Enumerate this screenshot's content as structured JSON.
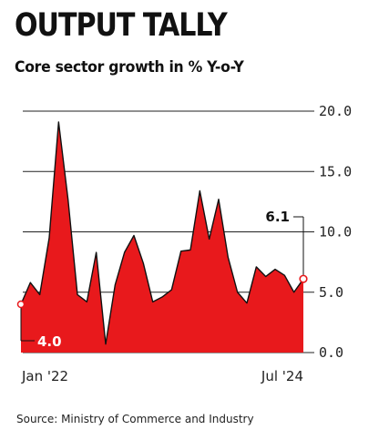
{
  "header": {
    "title": "OUTPUT TALLY",
    "subtitle": "Core sector growth in % Y-o-Y"
  },
  "footer": {
    "source": "Source: Ministry of Commerce and Industry"
  },
  "colors": {
    "fill": "#e8191c",
    "line": "#111111",
    "grid": "#222222",
    "marker_fill": "#ffffff",
    "marker_stroke": "#e8191c"
  },
  "chart_data": {
    "type": "area",
    "title": "OUTPUT TALLY",
    "subtitle": "Core sector growth in % Y-o-Y",
    "x_tick_labels": [
      "Jan '22",
      "Jul '24"
    ],
    "y_ticks": [
      0.0,
      5.0,
      10.0,
      15.0,
      20.0
    ],
    "y_tick_labels": [
      "0.0",
      "5.0",
      "10.0",
      "15.0",
      "20.0"
    ],
    "ylim": [
      0,
      20
    ],
    "grid": "horizontal",
    "legend": "none",
    "series": [
      {
        "x": [
          "2022-01",
          "2022-02",
          "2022-03",
          "2022-04",
          "2022-05",
          "2022-06",
          "2022-07",
          "2022-08",
          "2022-09",
          "2022-10",
          "2022-11",
          "2022-12",
          "2023-01",
          "2023-02",
          "2023-03",
          "2023-04",
          "2023-05",
          "2023-06",
          "2023-07",
          "2023-08",
          "2023-09",
          "2023-10",
          "2023-11",
          "2023-12",
          "2024-01",
          "2024-02",
          "2024-03",
          "2024-04",
          "2024-05",
          "2024-06",
          "2024-07"
        ],
        "values": [
          4.0,
          5.8,
          4.8,
          9.5,
          19.1,
          12.7,
          4.8,
          4.2,
          8.3,
          0.7,
          5.6,
          8.3,
          9.7,
          7.4,
          4.2,
          4.6,
          5.2,
          8.4,
          8.5,
          13.4,
          9.4,
          12.7,
          7.9,
          5.0,
          4.1,
          7.1,
          6.3,
          6.9,
          6.4,
          5.0,
          6.1
        ]
      }
    ],
    "annotations": [
      {
        "label": "4.0",
        "x": "2022-01",
        "y": 4.0
      },
      {
        "label": "6.1",
        "x": "2024-07",
        "y": 6.1
      }
    ]
  }
}
